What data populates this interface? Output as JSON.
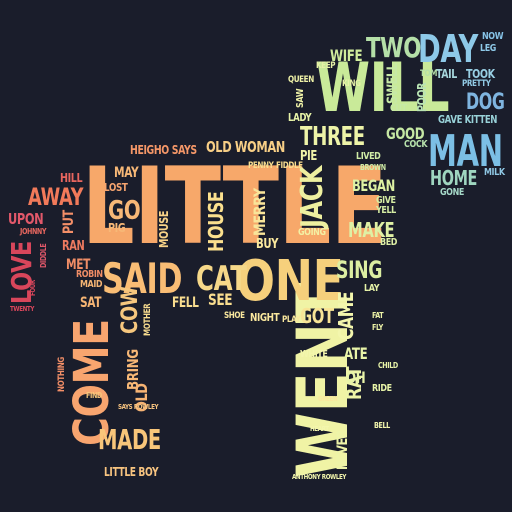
{
  "words": [
    {
      "text": "LITTLE",
      "color": "#f7a86a"
    },
    {
      "text": "WENT",
      "color": "#f0f3a5"
    },
    {
      "text": "WILL",
      "color": "#c9ea99"
    },
    {
      "text": "ONE",
      "color": "#f6d07c"
    },
    {
      "text": "SAID",
      "color": "#f9bd75"
    },
    {
      "text": "COME",
      "color": "#f8a56f"
    },
    {
      "text": "MAN",
      "color": "#7cbfe5"
    },
    {
      "text": "DAY",
      "color": "#8ec9e8"
    },
    {
      "text": "TWO",
      "color": "#b5e0a8"
    },
    {
      "text": "CAT",
      "color": "#f6d889"
    },
    {
      "text": "THREE",
      "color": "#eef4a8"
    },
    {
      "text": "JACK",
      "color": "#eef0a0"
    },
    {
      "text": "SING",
      "color": "#dceea2"
    },
    {
      "text": "AWAY",
      "color": "#f27a5a"
    },
    {
      "text": "LOVE",
      "color": "#d8465b"
    },
    {
      "text": "MADE",
      "color": "#f8c67a"
    },
    {
      "text": "DOG",
      "color": "#7fb5e0"
    },
    {
      "text": "HOME",
      "color": "#9fd6c0"
    },
    {
      "text": "GO",
      "color": "#f7b877"
    },
    {
      "text": "HOUSE",
      "color": "#fbe08e"
    },
    {
      "text": "MAKE",
      "color": "#dff0a4"
    },
    {
      "text": "COW",
      "color": "#f6c77e"
    },
    {
      "text": "WIFE",
      "color": "#d0ec9c"
    },
    {
      "text": "BEGAN",
      "color": "#ddf1a3"
    },
    {
      "text": "CAME",
      "color": "#f3f6ad"
    },
    {
      "text": "RAT",
      "color": "#eef4a8"
    },
    {
      "text": "GOT",
      "color": "#f8e596"
    },
    {
      "text": "OLD WOMAN",
      "color": "#f8cf86"
    },
    {
      "text": "HEIGHO SAYS",
      "color": "#f59768"
    },
    {
      "text": "GOOD",
      "color": "#c6e8a4"
    },
    {
      "text": "MERRY",
      "color": "#f9e59a"
    },
    {
      "text": "BRING",
      "color": "#f7b877"
    },
    {
      "text": "UPON",
      "color": "#e2586a"
    },
    {
      "text": "MOUSE",
      "color": "#f8d388"
    },
    {
      "text": "OLD",
      "color": "#f7b474"
    },
    {
      "text": "ATE",
      "color": "#e8f4a8"
    },
    {
      "text": "OH",
      "color": "#e8f4a8"
    },
    {
      "text": "NEVER",
      "color": "#eef4a8"
    },
    {
      "text": "LITTLE BOY",
      "color": "#f8c480"
    },
    {
      "text": "NIGHT",
      "color": "#fae89e"
    },
    {
      "text": "SEE",
      "color": "#f9dd8f"
    },
    {
      "text": "FELL",
      "color": "#f9dd8f"
    },
    {
      "text": "PIG",
      "color": "#f7b877"
    },
    {
      "text": "MAY",
      "color": "#f7b877"
    },
    {
      "text": "LOST",
      "color": "#f6a46f"
    },
    {
      "text": "MET",
      "color": "#f08d66"
    },
    {
      "text": "SAT",
      "color": "#f6b574"
    },
    {
      "text": "PUT",
      "color": "#f48f68"
    },
    {
      "text": "RAN",
      "color": "#ee7a60"
    },
    {
      "text": "HILL",
      "color": "#e8665f"
    },
    {
      "text": "BUY",
      "color": "#fae89e"
    },
    {
      "text": "GOING",
      "color": "#f3f0a4"
    },
    {
      "text": "LADY",
      "color": "#e6f2a6"
    },
    {
      "text": "PIE",
      "color": "#f0f3a8"
    },
    {
      "text": "NOW",
      "color": "#86c2e6"
    },
    {
      "text": "LEG",
      "color": "#8ec9e8"
    },
    {
      "text": "TOOK",
      "color": "#98cfe4"
    },
    {
      "text": "TAIL",
      "color": "#a7d7dc"
    },
    {
      "text": "PRETTY",
      "color": "#92cbe6"
    },
    {
      "text": "GAVE KITTEN",
      "color": "#98d1d8"
    },
    {
      "text": "GONE",
      "color": "#a5d8c8"
    },
    {
      "text": "MILK",
      "color": "#8fc7e4"
    },
    {
      "text": "POOR",
      "color": "#b9e4b4"
    },
    {
      "text": "SWELL",
      "color": "#c7e9a6"
    },
    {
      "text": "CUT",
      "color": "#c7e9a6"
    },
    {
      "text": "COCK",
      "color": "#b7e2ac"
    },
    {
      "text": "LIVED",
      "color": "#d0eca6"
    },
    {
      "text": "GIVE",
      "color": "#d6eea4"
    },
    {
      "text": "YELL",
      "color": "#d6eea4"
    },
    {
      "text": "BED",
      "color": "#dff1a6"
    },
    {
      "text": "LAY",
      "color": "#e6f3a8"
    },
    {
      "text": "SAW",
      "color": "#f0f3a8"
    },
    {
      "text": "KEEP",
      "color": "#e6f2a6"
    },
    {
      "text": "QUEEN",
      "color": "#f0f3a8"
    },
    {
      "text": "WHITE",
      "color": "#f3f6ad"
    },
    {
      "text": "RIDE",
      "color": "#e8f4a8"
    },
    {
      "text": "SHOE",
      "color": "#fae89e"
    },
    {
      "text": "PENNY",
      "color": "#f9dd8f"
    },
    {
      "text": "FIDDLE",
      "color": "#f9dd8f"
    },
    {
      "text": "JOHNNY",
      "color": "#e8665f"
    },
    {
      "text": "ROBIN",
      "color": "#f08d66"
    },
    {
      "text": "MAID",
      "color": "#f6b574"
    },
    {
      "text": "NOTHING",
      "color": "#f48f68"
    },
    {
      "text": "SAYS ROWLEY",
      "color": "#f8c480"
    },
    {
      "text": "ANTHONY ROWLEY",
      "color": "#f3f6ad"
    },
    {
      "text": "MOTHER",
      "color": "#f9dd8f"
    },
    {
      "text": "FIND",
      "color": "#f8c67a"
    },
    {
      "text": "PLAY",
      "color": "#fae89e"
    },
    {
      "text": "KING",
      "color": "#e6f2a6"
    },
    {
      "text": "BROWN",
      "color": "#d0eca6"
    },
    {
      "text": "TOM",
      "color": "#b5e0a8"
    },
    {
      "text": "FOUR",
      "color": "#d8465b"
    },
    {
      "text": "TWENTY",
      "color": "#d8465b"
    },
    {
      "text": "DIDDLE",
      "color": "#e2586a"
    },
    {
      "text": "CHILD",
      "color": "#e8f4a8"
    },
    {
      "text": "FAT",
      "color": "#eef4a8"
    },
    {
      "text": "FLY",
      "color": "#eef4a8"
    },
    {
      "text": "BELL",
      "color": "#f3f6ad"
    },
    {
      "text": "HEART",
      "color": "#f3f6ad"
    },
    {
      "text": "GREEN",
      "color": "#fae89e"
    }
  ]
}
